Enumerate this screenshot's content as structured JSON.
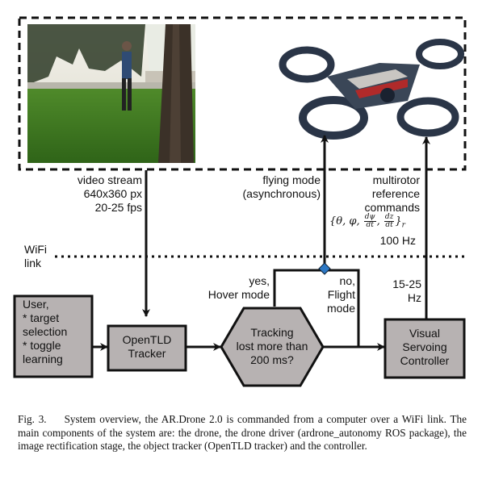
{
  "labels": {
    "video_stream": [
      "video stream",
      "640x360 px",
      "20-25 fps"
    ],
    "flying_mode": [
      "flying mode",
      "(asynchronous)"
    ],
    "ref_commands": [
      "multirotor",
      "reference",
      "commands"
    ],
    "ref_rate": "100 Hz",
    "wifi": [
      "WiFi",
      "link"
    ],
    "yes_branch": [
      "yes,",
      "Hover mode"
    ],
    "no_branch": [
      "no,",
      "Flight",
      "mode"
    ],
    "controller_rate": [
      "15-25",
      "Hz"
    ]
  },
  "nodes": {
    "user": [
      "User,",
      "* target",
      "selection",
      "* toggle",
      "learning"
    ],
    "tracker": [
      "OpenTLD",
      "Tracker"
    ],
    "decision": [
      "Tracking",
      "lost more than",
      "200 ms?"
    ],
    "controller": [
      "Visual",
      "Servoing",
      "Controller"
    ]
  },
  "caption": {
    "label": "Fig. 3.",
    "text": "System overview, the AR.Drone 2.0 is commanded from a computer over a WiFi link. The main components of the system are: the drone, the drone driver (ardrone_autonomy ROS package), the image rectification stage, the object tracker (OpenTLD tracker) and the controller."
  },
  "colors": {
    "box_fill": "#b7b2b2",
    "stroke": "#111111",
    "accent": "#1f6fb5"
  }
}
